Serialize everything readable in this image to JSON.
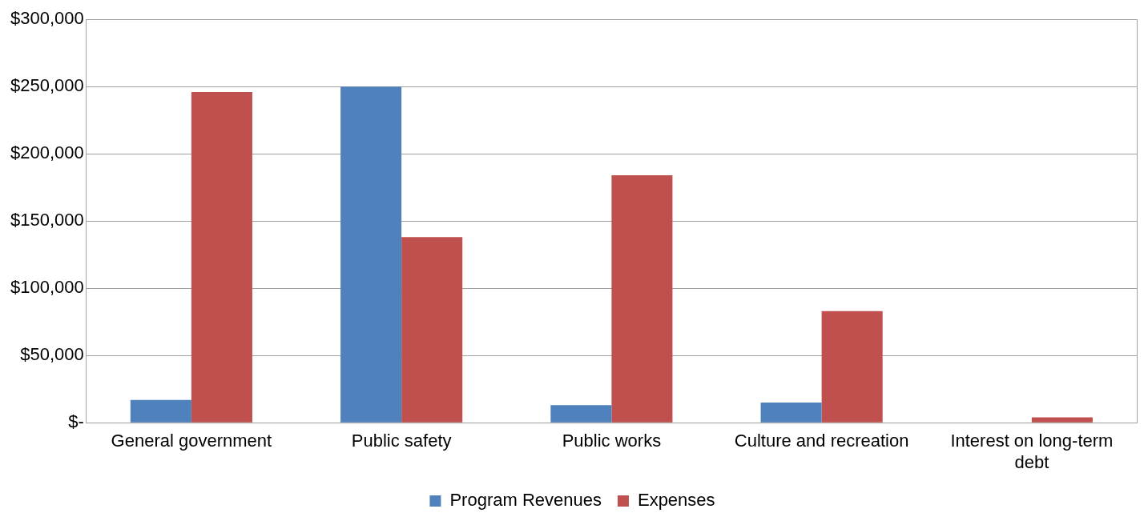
{
  "chart_data": {
    "type": "bar",
    "categories": [
      "General government",
      "Public safety",
      "Public works",
      "Culture and recreation",
      "Interest on long-term debt"
    ],
    "series": [
      {
        "name": "Program Revenues",
        "color": "#4f81bd",
        "values": [
          17000,
          250000,
          13000,
          15000,
          0
        ]
      },
      {
        "name": "Expenses",
        "color": "#c0504d",
        "values": [
          246000,
          138000,
          184000,
          83000,
          4000
        ]
      }
    ],
    "ylim": [
      0,
      300000
    ],
    "yticks": [
      {
        "value": 0,
        "label": "$-"
      },
      {
        "value": 50000,
        "label": "$50,000"
      },
      {
        "value": 100000,
        "label": "$100,000"
      },
      {
        "value": 150000,
        "label": "$150,000"
      },
      {
        "value": 200000,
        "label": "$200,000"
      },
      {
        "value": 250000,
        "label": "$250,000"
      },
      {
        "value": 300000,
        "label": "$300,000"
      }
    ],
    "grid": "y",
    "legend": "bottom"
  }
}
